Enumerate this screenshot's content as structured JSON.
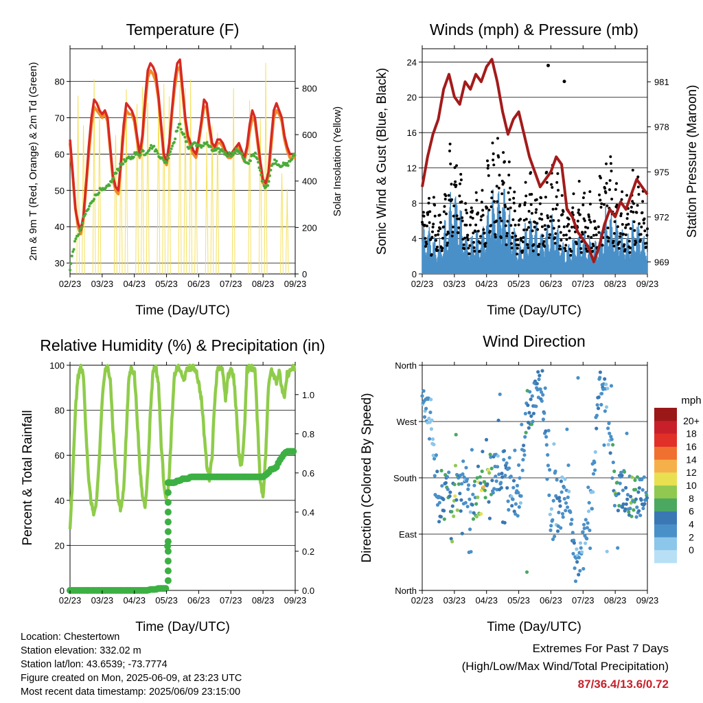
{
  "ticks_x": [
    "02/23",
    "03/23",
    "04/23",
    "05/23",
    "06/23",
    "07/23",
    "08/23",
    "09/23"
  ],
  "x_label": "Time (Day/UTC)",
  "colors": {
    "temp_red": "#d62a23",
    "temp_orange": "#f08a2a",
    "dew_green": "#4bab3a",
    "solar_yellow": "#f6e05a",
    "wind_blue": "#4a90c8",
    "gust_black": "#000000",
    "pressure_maroon": "#a31b1b",
    "rh_green": "#8fcc4a",
    "precip_green": "#3cb043",
    "extremes_red": "#c8202a"
  },
  "chart_data": [
    {
      "type": "line",
      "title": "Temperature (F)",
      "xlabel": "Time (Day/UTC)",
      "ylabel": "2m & 9m T (Red, Orange) & 2m Td (Green)",
      "ylabel_right": "Solar Insolation (Yellow)",
      "ylim": [
        27,
        89
      ],
      "yticks": [
        30,
        40,
        50,
        60,
        70,
        80
      ],
      "ylim_right": [
        0,
        970
      ],
      "yticks_right": [
        0,
        200,
        400,
        600,
        800
      ],
      "x": [
        0,
        0.5,
        1,
        1.5,
        2,
        2.5,
        3,
        3.5,
        4,
        4.5,
        5,
        5.5,
        6,
        6.5,
        7,
        7.5,
        8,
        8.5,
        9,
        9.5,
        10,
        10.5,
        11,
        11.5,
        12,
        12.5,
        13,
        13.5,
        14,
        14.5,
        15,
        15.5,
        16,
        16.5,
        17,
        17.5,
        18,
        18.5,
        19,
        19.5,
        20,
        20.5,
        21,
        21.5,
        22,
        22.5,
        23,
        23.5,
        24,
        24.5,
        25,
        25.5,
        26,
        26.5,
        27,
        27.5,
        28,
        28.5,
        29,
        29.5,
        30,
        30.5,
        31,
        31.5,
        32,
        32.5,
        33,
        33.5,
        34,
        34.5,
        35,
        35.5,
        36,
        36.5,
        37,
        37.5,
        38,
        38.5,
        39,
        39.5,
        40,
        40.5,
        41,
        41.5,
        42
      ],
      "series": [
        {
          "name": "2m T",
          "values": [
            64,
            55,
            45,
            41,
            39,
            43,
            52,
            62,
            70,
            75,
            74,
            72,
            71,
            72,
            70,
            62,
            54,
            51,
            50,
            58,
            68,
            74,
            73,
            72,
            70,
            65,
            60,
            65,
            75,
            83,
            85,
            84,
            82,
            76,
            68,
            60,
            58,
            63,
            72,
            80,
            85,
            86,
            78,
            70,
            65,
            63,
            61,
            60,
            64,
            69,
            75,
            74,
            68,
            63,
            62,
            64,
            64,
            63,
            61,
            60,
            60,
            61,
            62,
            63,
            61,
            59,
            62,
            68,
            72,
            70,
            64,
            58,
            53,
            52,
            55,
            64,
            72,
            74,
            72,
            70,
            65,
            62,
            60,
            60,
            60
          ]
        },
        {
          "name": "9m T",
          "values": [
            63,
            54,
            45,
            40,
            38,
            42,
            51,
            60,
            68,
            73,
            72,
            71,
            70,
            71,
            69,
            61,
            53,
            50,
            49,
            57,
            66,
            72,
            71,
            71,
            69,
            64,
            59,
            64,
            73,
            81,
            83,
            82,
            80,
            75,
            67,
            59,
            57,
            62,
            71,
            78,
            83,
            84,
            77,
            69,
            64,
            62,
            60,
            59,
            63,
            68,
            73,
            73,
            67,
            62,
            61,
            63,
            63,
            62,
            60,
            59,
            59,
            60,
            61,
            62,
            60,
            58,
            61,
            66,
            70,
            69,
            63,
            57,
            52,
            51,
            54,
            62,
            70,
            72,
            71,
            69,
            64,
            61,
            59,
            59,
            59
          ]
        },
        {
          "name": "2m Td",
          "values": [
            28,
            33,
            36,
            38,
            39,
            42,
            44,
            45,
            47,
            48,
            49,
            50,
            50,
            50,
            51,
            52,
            53,
            55,
            56,
            57,
            58,
            58,
            59,
            59,
            60,
            60,
            60,
            61,
            60,
            61,
            62,
            62,
            61,
            60,
            59,
            58,
            58,
            60,
            62,
            64,
            67,
            68,
            66,
            64,
            62,
            62,
            63,
            63,
            62,
            62,
            63,
            63,
            62,
            61,
            61,
            61,
            61,
            61,
            60,
            60,
            60,
            60,
            61,
            61,
            60,
            58,
            57,
            58,
            60,
            60,
            58,
            55,
            52,
            51,
            52,
            56,
            58,
            58,
            57,
            57,
            57,
            57,
            58,
            59,
            60
          ]
        }
      ],
      "solar_peaks_day": [
        1.5,
        2.5,
        4.5,
        5.5,
        8.5,
        9.5,
        10.5,
        12.5,
        13.5,
        14.5,
        16.5,
        17.5,
        18.5,
        20.5,
        21.5,
        22.5,
        23.5,
        25.5,
        26.5,
        27.5,
        30.5,
        33.5,
        35.5,
        36.5,
        39.5,
        40.5
      ],
      "solar_peaks_val": [
        820,
        760,
        860,
        780,
        730,
        700,
        820,
        870,
        840,
        900,
        920,
        880,
        860,
        900,
        910,
        850,
        600,
        640,
        720,
        690,
        800,
        760,
        810,
        940,
        500,
        380
      ]
    },
    {
      "type": "scatter",
      "title": "Winds (mph) & Pressure (mb)",
      "xlabel": "Time (Day/UTC)",
      "ylabel": "Sonic Wind & Gust (Blue, Black)",
      "ylabel_right": "Station Pressure (Maroon)",
      "ylim": [
        0,
        25.5
      ],
      "yticks": [
        0,
        4,
        8,
        12,
        16,
        20,
        24
      ],
      "ylim_right": [
        968.2,
        983.2
      ],
      "yticks_right": [
        969,
        972,
        975,
        978,
        981
      ],
      "gust_envelope": [
        10,
        12,
        9,
        8,
        9,
        14,
        17,
        15,
        10,
        8,
        11,
        9,
        12,
        16,
        17,
        18,
        15,
        12,
        9,
        8,
        12,
        12,
        10,
        11,
        13,
        14,
        12,
        9,
        8,
        10,
        12,
        10,
        10,
        8,
        12,
        14,
        14,
        12,
        10,
        9,
        12,
        13,
        11,
        9
      ],
      "wind_envelope": [
        6,
        7,
        5,
        4,
        5,
        9,
        12,
        10,
        6,
        4,
        6,
        5,
        7,
        10,
        11,
        12,
        10,
        7,
        5,
        4,
        7,
        7,
        6,
        6,
        7,
        8,
        6,
        4,
        4,
        5,
        6,
        5,
        5,
        4,
        6,
        8,
        8,
        7,
        6,
        5,
        6,
        7,
        6,
        4
      ],
      "gust_outliers": [
        [
          23.5,
          23.6
        ],
        [
          26.5,
          21.8
        ]
      ],
      "pressure_x": [
        0,
        1,
        2,
        3,
        4,
        5,
        6,
        7,
        8,
        9,
        10,
        11,
        12,
        13,
        14,
        15,
        16,
        17,
        18,
        19,
        20,
        21,
        22,
        23,
        24,
        25,
        26,
        27,
        28,
        29,
        30,
        31,
        32,
        33,
        34,
        35,
        36,
        37,
        38,
        39,
        40,
        41,
        42
      ],
      "pressure": [
        974,
        976,
        977.5,
        978.5,
        980.5,
        981.5,
        980,
        979.5,
        981,
        980.5,
        981.5,
        981,
        982,
        982.5,
        981,
        979,
        977.5,
        978.5,
        979,
        977.5,
        976,
        975,
        974,
        974.5,
        975,
        976,
        975.5,
        972.5,
        972,
        971,
        970.5,
        970,
        969,
        970,
        971.5,
        972.5,
        972,
        973,
        972.5,
        973.5,
        974.5,
        974,
        973.5
      ]
    },
    {
      "type": "line",
      "title": "Relative Humidity (%) & Precipitation (in)",
      "xlabel": "Time (Day/UTC)",
      "ylabel": "Percent & Total Rainfall",
      "ylim": [
        0,
        100
      ],
      "yticks": [
        0,
        20,
        40,
        60,
        80,
        100
      ],
      "ylim_right": [
        0,
        1.15
      ],
      "yticks_right": [
        0.0,
        0.2,
        0.4,
        0.6,
        0.8,
        1.0
      ],
      "x": [
        0,
        0.5,
        1,
        1.5,
        2,
        2.5,
        3,
        3.5,
        4,
        4.5,
        5,
        5.5,
        6,
        6.5,
        7,
        7.5,
        8,
        8.5,
        9,
        9.5,
        10,
        10.5,
        11,
        11.5,
        12,
        12.5,
        13,
        13.5,
        14,
        14.5,
        15,
        15.5,
        16,
        16.5,
        17,
        17.5,
        18,
        18.5,
        19,
        19.5,
        20,
        20.5,
        21,
        21.5,
        22,
        22.5,
        23,
        23.5,
        24,
        24.5,
        25,
        25.5,
        26,
        26.5,
        27,
        27.5,
        28,
        28.5,
        29,
        29.5,
        30,
        30.5,
        31,
        31.5,
        32,
        32.5,
        33,
        33.5,
        34,
        34.5,
        35,
        35.5,
        36,
        36.5,
        37,
        37.5,
        38,
        38.5,
        39,
        39.5,
        40,
        40.5,
        41,
        41.5,
        42
      ],
      "series": [
        {
          "name": "RH",
          "values": [
            26,
            50,
            80,
            95,
            99,
            95,
            70,
            48,
            38,
            34,
            40,
            60,
            85,
            97,
            99,
            95,
            72,
            55,
            40,
            36,
            45,
            70,
            95,
            99,
            96,
            78,
            55,
            42,
            38,
            52,
            80,
            98,
            99,
            92,
            65,
            48,
            40,
            50,
            75,
            96,
            99,
            98,
            94,
            95,
            99,
            99,
            99,
            98,
            92,
            85,
            70,
            56,
            50,
            60,
            85,
            99,
            99,
            97,
            84,
            95,
            99,
            95,
            80,
            60,
            55,
            70,
            98,
            99,
            99,
            98,
            72,
            48,
            42,
            60,
            90,
            99,
            96,
            93,
            97,
            90,
            85,
            96,
            97,
            99,
            98
          ]
        },
        {
          "name": "Precip",
          "values": [
            0,
            0,
            0,
            0,
            0,
            0,
            0,
            0,
            0,
            0,
            0,
            0,
            0,
            0,
            0,
            0,
            0,
            0,
            0,
            0,
            0,
            0,
            0,
            0,
            0,
            0,
            0,
            0,
            0,
            0,
            0.005,
            0.005,
            0.005,
            0.01,
            0.01,
            0.01,
            0.01,
            0.55,
            0.55,
            0.55,
            0.56,
            0.56,
            0.57,
            0.57,
            0.57,
            0.58,
            0.58,
            0.58,
            0.58,
            0.58,
            0.58,
            0.58,
            0.58,
            0.58,
            0.58,
            0.58,
            0.58,
            0.58,
            0.58,
            0.58,
            0.58,
            0.58,
            0.58,
            0.58,
            0.58,
            0.58,
            0.58,
            0.58,
            0.58,
            0.58,
            0.58,
            0.58,
            0.58,
            0.59,
            0.6,
            0.62,
            0.62,
            0.63,
            0.66,
            0.68,
            0.7,
            0.71,
            0.71,
            0.71,
            0.71
          ]
        }
      ]
    },
    {
      "type": "scatter",
      "title": "Wind Direction",
      "xlabel": "Time (Day/UTC)",
      "ylabel": "Direction (Colored By Speed)",
      "ylim": [
        0,
        360
      ],
      "yticks": [
        "North",
        "East",
        "South",
        "West",
        "North"
      ],
      "legend_title": "mph",
      "legend_levels": [
        "0",
        "2",
        "4",
        "6",
        "8",
        "10",
        "12",
        "14",
        "16",
        "18",
        "20+"
      ],
      "legend_colors": [
        "#b8e0f5",
        "#8cc6ea",
        "#4a90c8",
        "#3a78b4",
        "#4aa860",
        "#90c850",
        "#e8e050",
        "#f6b04a",
        "#f07030",
        "#e03028",
        "#c8202a",
        "#9a1818"
      ],
      "dir_centers_day": [
        0.5,
        2,
        3,
        4.5,
        6,
        7.5,
        9,
        10.5,
        12,
        13.5,
        15,
        16.5,
        18,
        19.5,
        21,
        22.5,
        24,
        25.5,
        27,
        28.5,
        30,
        31.5,
        33,
        34.5,
        36,
        37.5,
        39,
        40.5,
        41.5
      ],
      "dir_centers_deg": [
        300,
        250,
        140,
        160,
        150,
        180,
        140,
        150,
        170,
        190,
        200,
        150,
        130,
        290,
        300,
        320,
        110,
        130,
        150,
        60,
        60,
        140,
        320,
        310,
        150,
        160,
        150,
        150,
        150
      ],
      "dir_centers_speed": [
        3,
        2,
        5,
        6,
        10,
        4,
        3,
        9,
        12,
        3,
        5,
        4,
        3,
        6,
        5,
        4,
        3,
        4,
        3,
        5,
        3,
        3,
        5,
        3,
        7,
        6,
        8,
        5,
        6
      ]
    }
  ],
  "info": {
    "location": "Location: Chestertown",
    "elevation": "Station elevation: 332.02 m",
    "latlon": "Station lat/lon: 43.6539; -73.7774",
    "created": "Figure created on Mon, 2025-06-09, at 23:23 UTC",
    "recent": "Most recent data timestamp: 2025/06/09 23:15:00"
  },
  "extremes": {
    "title": "Extremes For Past 7 Days",
    "subtitle": "(High/Low/Max Wind/Total Precipitation)",
    "values": "87/36.4/13.6/0.72"
  }
}
